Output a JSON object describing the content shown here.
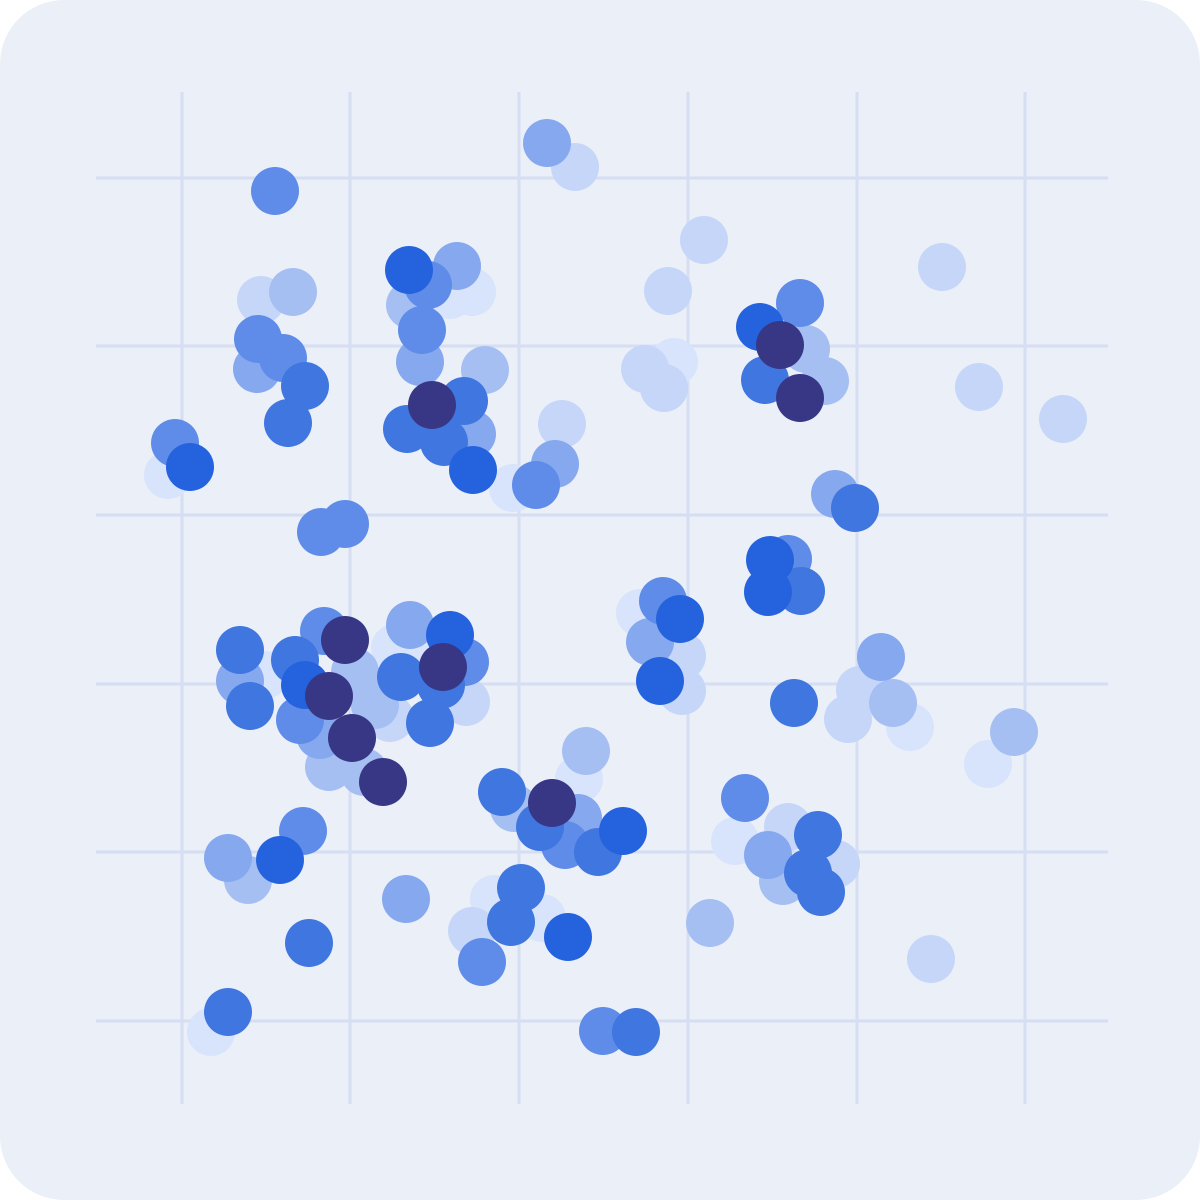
{
  "chart_data": {
    "type": "scatter",
    "xlim": [
      96,
      1108
    ],
    "ylim": [
      1104,
      92
    ],
    "xticks": [
      182,
      350,
      519,
      688,
      857,
      1025
    ],
    "yticks": [
      178,
      346,
      515,
      684,
      852,
      1021
    ],
    "grid": true,
    "series": [
      {
        "color": "#d8e4fb",
        "x": [
          450,
          472,
          674,
          168,
          513,
          640,
          265,
          395,
          430,
          910,
          988,
          579,
          735,
          494,
          542,
          211
        ],
        "y": [
          295,
          292,
          362,
          475,
          488,
          613,
          675,
          648,
          650,
          727,
          764,
          779,
          841,
          899,
          918,
          1032
        ]
      },
      {
        "color": "#c5d6f8",
        "x": [
          575,
          704,
          942,
          668,
          261,
          645,
          664,
          979,
          1063,
          562,
          682,
          682,
          390,
          466,
          860,
          848,
          788,
          836,
          472,
          931
        ],
        "y": [
          167,
          240,
          267,
          291,
          300,
          369,
          388,
          387,
          419,
          424,
          656,
          691,
          718,
          702,
          690,
          719,
          827,
          864,
          931,
          959
        ]
      },
      {
        "color": "#a5bff3",
        "x": [
          410,
          485,
          293,
          806,
          825,
          355,
          375,
          329,
          364,
          893,
          1014,
          586,
          514,
          783,
          248,
          710
        ],
        "y": [
          305,
          370,
          292,
          349,
          381,
          672,
          705,
          767,
          772,
          703,
          732,
          751,
          808,
          881,
          880,
          923
        ]
      },
      {
        "color": "#86a8ef",
        "x": [
          547,
          457,
          420,
          257,
          472,
          555,
          835,
          650,
          240,
          320,
          410,
          881,
          578,
          768,
          228,
          406
        ],
        "y": [
          143,
          266,
          362,
          369,
          434,
          464,
          494,
          642,
          681,
          735,
          625,
          657,
          818,
          855,
          858,
          899
        ]
      },
      {
        "color": "#5e8ce8",
        "x": [
          275,
          428,
          422,
          258,
          283,
          800,
          175,
          536,
          345,
          321,
          788,
          663,
          324,
          300,
          465,
          565,
          745,
          303,
          482,
          603
        ],
        "y": [
          191,
          285,
          330,
          339,
          358,
          303,
          443,
          485,
          524,
          532,
          559,
          601,
          631,
          720,
          662,
          845,
          798,
          831,
          962,
          1031
        ]
      },
      {
        "color": "#3f76e0",
        "x": [
          305,
          288,
          765,
          464,
          407,
          444,
          855,
          801,
          240,
          250,
          295,
          441,
          401,
          430,
          794,
          502,
          540,
          598,
          818,
          808,
          821,
          521,
          511,
          309,
          228,
          636
        ],
        "y": [
          386,
          423,
          380,
          401,
          429,
          442,
          508,
          591,
          650,
          706,
          660,
          685,
          677,
          723,
          703,
          792,
          827,
          852,
          835,
          873,
          892,
          888,
          922,
          943,
          1012,
          1032
        ]
      },
      {
        "color": "#2563de",
        "x": [
          409,
          760,
          190,
          473,
          770,
          768,
          680,
          660,
          305,
          450,
          623,
          280,
          568
        ],
        "y": [
          270,
          327,
          467,
          470,
          560,
          592,
          619,
          681,
          685,
          635,
          831,
          860,
          937
        ]
      },
      {
        "color": "#383786",
        "x": [
          780,
          800,
          432,
          345,
          329,
          443,
          352,
          383,
          552
        ],
        "y": [
          345,
          398,
          405,
          640,
          696,
          667,
          738,
          782,
          803
        ]
      }
    ]
  }
}
